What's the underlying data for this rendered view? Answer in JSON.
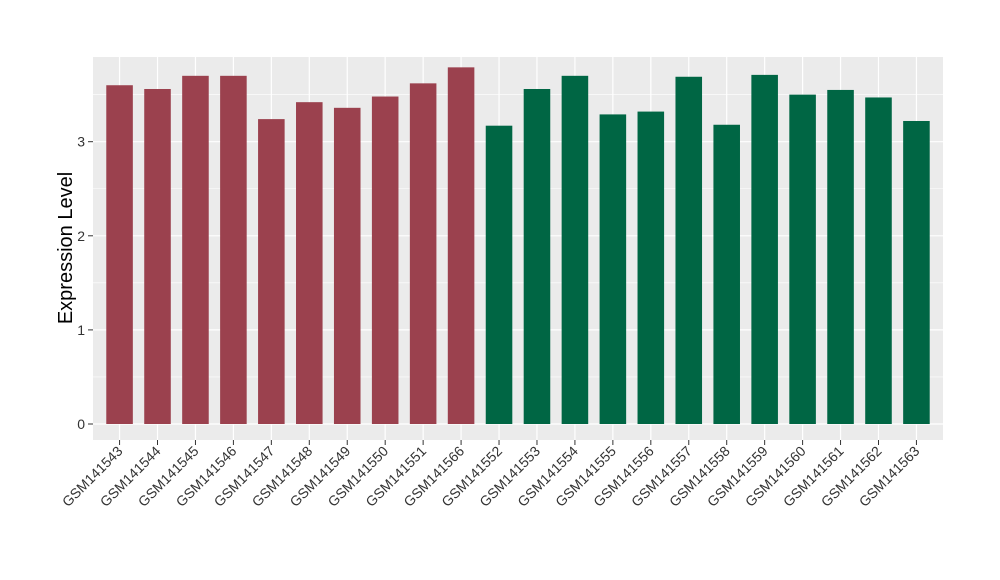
{
  "chart_data": {
    "type": "bar",
    "title": "",
    "xlabel": "",
    "ylabel": "Expression Level",
    "ylim": [
      -0.17,
      3.9
    ],
    "yticks": [
      0,
      1,
      2,
      3
    ],
    "grid": true,
    "background": "#ebebeb",
    "categories": [
      "GSM141543",
      "GSM141544",
      "GSM141545",
      "GSM141546",
      "GSM141547",
      "GSM141548",
      "GSM141549",
      "GSM141550",
      "GSM141551",
      "GSM141566",
      "GSM141552",
      "GSM141553",
      "GSM141554",
      "GSM141555",
      "GSM141556",
      "GSM141557",
      "GSM141558",
      "GSM141559",
      "GSM141560",
      "GSM141561",
      "GSM141562",
      "GSM141563"
    ],
    "values": [
      3.6,
      3.56,
      3.7,
      3.7,
      3.24,
      3.42,
      3.36,
      3.48,
      3.62,
      3.79,
      3.17,
      3.56,
      3.7,
      3.29,
      3.32,
      3.69,
      3.18,
      3.71,
      3.5,
      3.55,
      3.47,
      3.22
    ],
    "group_colors": [
      "#9b414e",
      "#9b414e",
      "#9b414e",
      "#9b414e",
      "#9b414e",
      "#9b414e",
      "#9b414e",
      "#9b414e",
      "#9b414e",
      "#9b414e",
      "#006644",
      "#006644",
      "#006644",
      "#006644",
      "#006644",
      "#006644",
      "#006644",
      "#006644",
      "#006644",
      "#006644",
      "#006644",
      "#006644"
    ]
  }
}
